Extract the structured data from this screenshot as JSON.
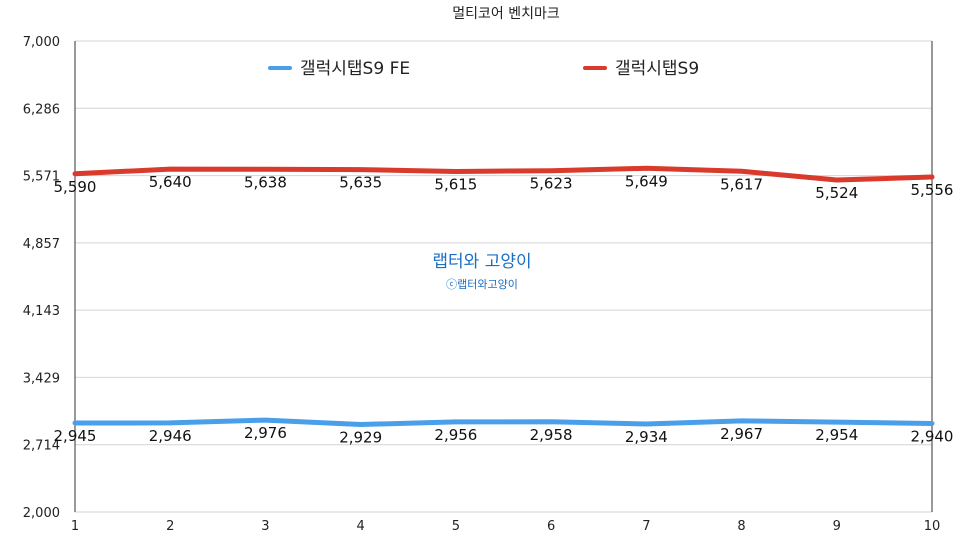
{
  "chart_data": {
    "type": "line",
    "title": "멀티코어 벤치마크",
    "xlabel": "",
    "ylabel": "",
    "x": [
      1,
      2,
      3,
      4,
      5,
      6,
      7,
      8,
      9,
      10
    ],
    "ylim": [
      2000,
      7000
    ],
    "yticks": [
      "2,000",
      "2,714",
      "3,429",
      "4,143",
      "4,857",
      "5,571",
      "6,286",
      "7,000"
    ],
    "ytick_values": [
      2000,
      2714,
      3429,
      4143,
      4857,
      5571,
      6286,
      7000
    ],
    "grid": true,
    "legend_position": "top",
    "series": [
      {
        "name": "갤럭시탭S9 FE",
        "color": "#4a9fea",
        "values": [
          2945,
          2946,
          2976,
          2929,
          2956,
          2958,
          2934,
          2967,
          2954,
          2940
        ],
        "labels": [
          "2,945",
          "2,946",
          "2,976",
          "2,929",
          "2,956",
          "2,958",
          "2,934",
          "2,967",
          "2,954",
          "2,940"
        ]
      },
      {
        "name": "갤럭시탭S9",
        "color": "#d93a2b",
        "values": [
          5590,
          5640,
          5638,
          5635,
          5615,
          5623,
          5649,
          5617,
          5524,
          5556
        ],
        "labels": [
          "5,590",
          "5,640",
          "5,638",
          "5,635",
          "5,615",
          "5,623",
          "5,649",
          "5,617",
          "5,524",
          "5,556"
        ]
      }
    ]
  },
  "watermark": {
    "main": "랩터와 고양이",
    "sub": "ⓒ랩터와고양이"
  }
}
